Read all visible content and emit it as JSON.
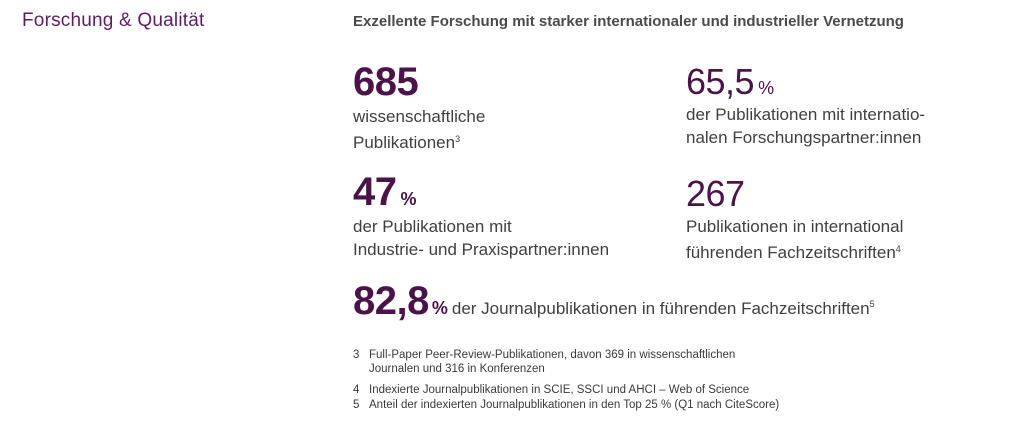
{
  "section": {
    "title": "Forschung & Qualität"
  },
  "headline": "Exzellente Forschung mit starker internationaler und industrieller Vernetzung",
  "stats": [
    {
      "value": "685",
      "unit": "",
      "line1": "wissenschaftliche",
      "line2": "Publikationen",
      "footnote": "3"
    },
    {
      "value": "65,5",
      "unit": "%",
      "line1": "der Publikationen mit internatio-",
      "line2": "nalen Forschungspartner:innen",
      "footnote": ""
    },
    {
      "value": "47",
      "unit": "%",
      "line1": "der Publikationen mit",
      "line2": "Industrie- und Praxispartner:innen",
      "footnote": ""
    },
    {
      "value": "267",
      "unit": "",
      "line1": "Publikationen in international",
      "line2": "führenden Fachzeitschriften",
      "footnote": "4"
    }
  ],
  "big_stat": {
    "value": "82,8",
    "unit": "%",
    "text": "der Journalpublikationen in führenden Fachzeitschriften",
    "footnote": "5"
  },
  "footnotes": [
    {
      "num": "3",
      "text": "Full-Paper Peer-Review-Publikationen, davon 369 in wissenschaftlichen\nJournalen und 316 in Konferenzen"
    },
    {
      "num": "4",
      "text": "Indexierte Journalpublikationen in SCIE, SSCI und AHCI – Web of Science"
    },
    {
      "num": "5",
      "text": "Anteil der indexierten Journalpublikationen in den Top 25 % (Q1 nach CiteScore)"
    }
  ],
  "colors": {
    "accent": "#5c1e61",
    "number": "#4a1449",
    "text": "#3f3f3f"
  }
}
